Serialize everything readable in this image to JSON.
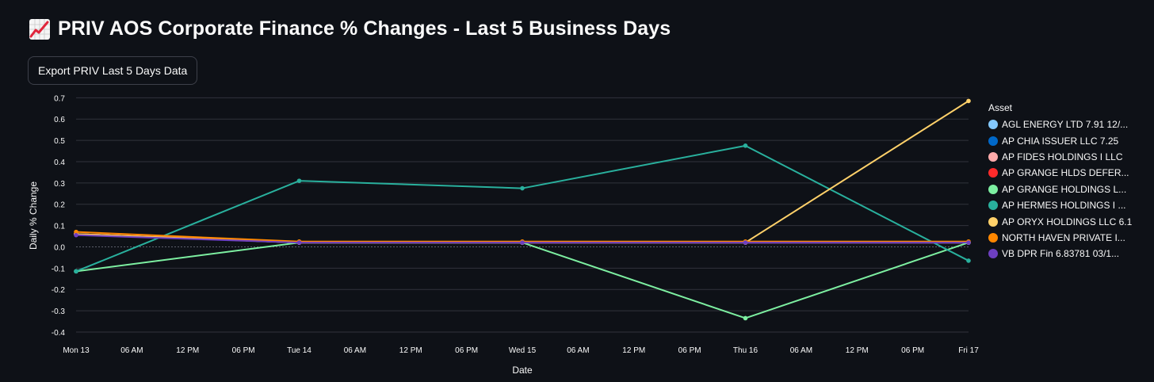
{
  "page": {
    "title": "PRIV AOS Corporate Finance % Changes - Last 5 Business Days",
    "title_icon": "chart-increasing-icon",
    "export_button_label": "Export PRIV Last 5 Days Data"
  },
  "colors": {
    "background": "#0e1117",
    "text": "#fafafa",
    "grid": "#31333c",
    "button_border": "#3d404a"
  },
  "chart_data": {
    "type": "line",
    "xlabel": "Date",
    "ylabel": "Daily % Change",
    "ylim": [
      -0.43,
      0.72
    ],
    "yticks": [
      0.7,
      0.6,
      0.5,
      0.4,
      0.3,
      0.2,
      0.1,
      0.0,
      -0.1,
      -0.2,
      -0.3,
      -0.4
    ],
    "ytick_labels": [
      "0.7",
      "0.6",
      "0.5",
      "0.4",
      "0.3",
      "0.2",
      "0.1",
      "0.0",
      "-0.1",
      "-0.2",
      "-0.3",
      "-0.4"
    ],
    "x_range": [
      0,
      4
    ],
    "x_ticks": [
      {
        "x": 0,
        "label": "Mon 13"
      },
      {
        "x": 0.25,
        "label": "06 AM"
      },
      {
        "x": 0.5,
        "label": "12 PM"
      },
      {
        "x": 0.75,
        "label": "06 PM"
      },
      {
        "x": 1,
        "label": "Tue 14"
      },
      {
        "x": 1.25,
        "label": "06 AM"
      },
      {
        "x": 1.5,
        "label": "12 PM"
      },
      {
        "x": 1.75,
        "label": "06 PM"
      },
      {
        "x": 2,
        "label": "Wed 15"
      },
      {
        "x": 2.25,
        "label": "06 AM"
      },
      {
        "x": 2.5,
        "label": "12 PM"
      },
      {
        "x": 2.75,
        "label": "06 PM"
      },
      {
        "x": 3,
        "label": "Thu 16"
      },
      {
        "x": 3.25,
        "label": "06 AM"
      },
      {
        "x": 3.5,
        "label": "12 PM"
      },
      {
        "x": 3.75,
        "label": "06 PM"
      },
      {
        "x": 4,
        "label": "Fri 17"
      }
    ],
    "x": [
      0,
      1,
      2,
      3,
      4
    ],
    "categories": [
      "Mon 13",
      "Tue 14",
      "Wed 15",
      "Thu 16",
      "Fri 17"
    ],
    "legend_title": "Asset",
    "legend_position": "right",
    "series": [
      {
        "name": "AGL ENERGY LTD 7.91 12/...",
        "color": "#83c9ff",
        "values": [
          0.06,
          0.02,
          0.02,
          0.02,
          0.02
        ]
      },
      {
        "name": "AP CHIA ISSUER LLC 7.25",
        "color": "#0068c9",
        "values": [
          0.06,
          0.02,
          0.02,
          0.02,
          0.02
        ]
      },
      {
        "name": "AP FIDES HOLDINGS I LLC",
        "color": "#ffabab",
        "values": [
          0.06,
          0.02,
          0.02,
          0.02,
          0.02
        ]
      },
      {
        "name": "AP GRANGE HLDS DEFER...",
        "color": "#ff2b2b",
        "values": [
          0.06,
          0.02,
          0.02,
          0.02,
          0.02
        ]
      },
      {
        "name": "AP GRANGE HOLDINGS L...",
        "color": "#7defa1",
        "values": [
          -0.115,
          0.02,
          0.02,
          -0.335,
          0.02
        ]
      },
      {
        "name": "AP HERMES HOLDINGS I ...",
        "color": "#29b09d",
        "values": [
          -0.115,
          0.31,
          0.275,
          0.475,
          -0.065
        ]
      },
      {
        "name": "AP ORYX HOLDINGS LLC 6.1",
        "color": "#ffd16a",
        "values": [
          0.06,
          0.02,
          0.02,
          0.02,
          0.685
        ]
      },
      {
        "name": "NORTH HAVEN PRIVATE I...",
        "color": "#ff8700",
        "values": [
          0.07,
          0.025,
          0.025,
          0.025,
          0.025
        ]
      },
      {
        "name": "VB DPR Fin 6.83781 03/1...",
        "color": "#6d3fc0",
        "values": [
          0.055,
          0.02,
          0.02,
          0.02,
          0.02
        ]
      }
    ]
  }
}
